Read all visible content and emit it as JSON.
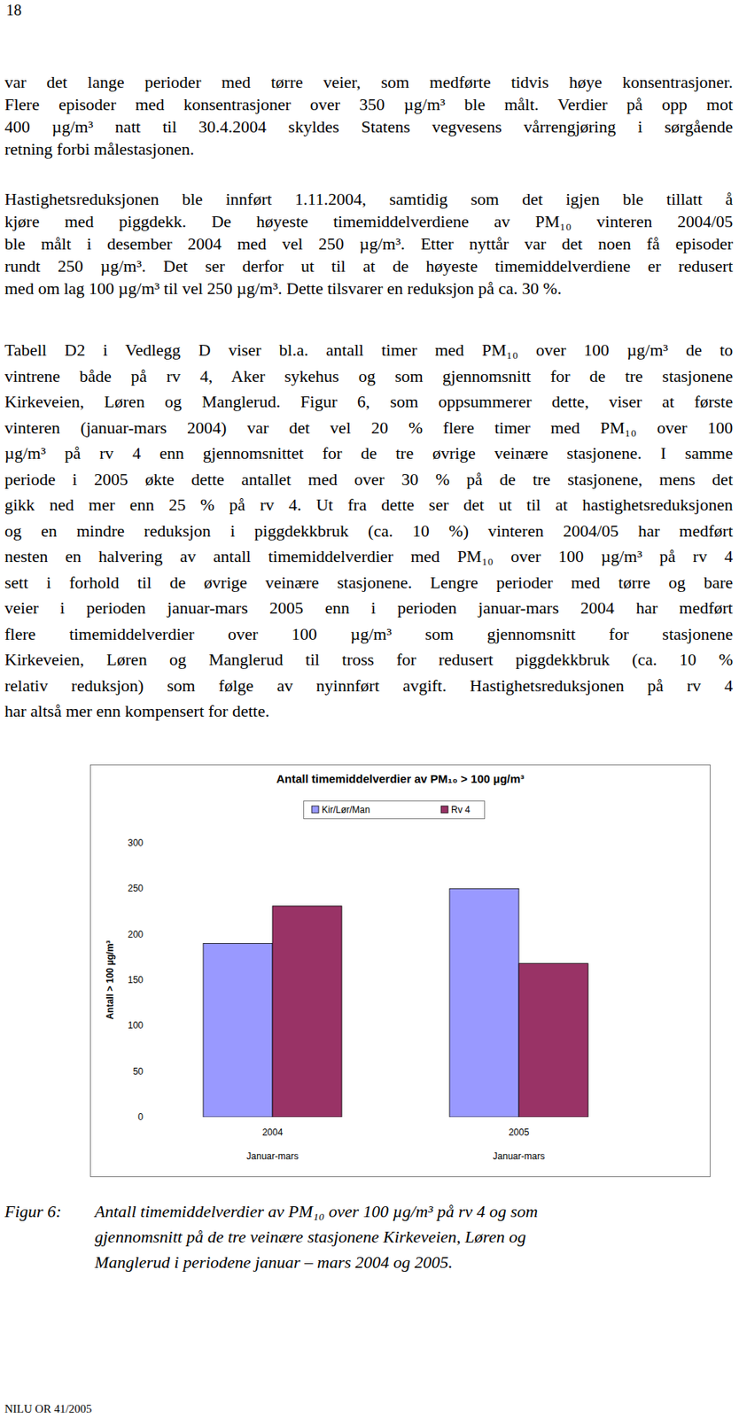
{
  "page": {
    "page_number": "18",
    "paragraphs": [
      [
        "var det lange perioder med tørre veier, som medførte tidvis høye konsentrasjoner.",
        "Flere episoder med konsentrasjoner over 350 µg/m³ ble målt. Verdier på opp mot",
        "400 µg/m³ natt til 30.4.2004 skyldes Statens vegvesens vårrengjøring i sørgående",
        "retning forbi målestasjonen."
      ],
      [
        "Hastighetsreduksjonen ble innført 1.11.2004, samtidig som det igjen ble tillatt å",
        "kjøre med piggdekk. De høyeste timemiddelverdiene av PM₁₀ vinteren 2004/05",
        "ble målt i desember 2004 med vel 250 µg/m³. Etter nyttår var det noen få episoder",
        "rundt 250 µg/m³. Det ser derfor ut til at de høyeste timemiddelverdiene er redusert",
        "med om lag 100 µg/m³ til vel 250 µg/m³. Dette tilsvarer en reduksjon på ca. 30 %."
      ],
      [
        "Tabell D2 i Vedlegg D viser bl.a. antall timer med PM₁₀ over 100 µg/m³ de to",
        "vintrene både på rv 4, Aker sykehus og som gjennomsnitt for de tre stasjonene",
        "Kirkeveien, Løren og Manglerud. Figur 6, som oppsummerer dette, viser at første",
        "vinteren (januar-mars 2004) var det vel 20 % flere timer med PM₁₀ over 100",
        "µg/m³ på rv 4 enn gjennomsnittet for de tre øvrige veinære stasjonene. I samme",
        "periode i 2005 økte dette antallet med over 30 % på de tre stasjonene, mens det",
        "gikk ned mer enn 25 % på rv 4. Ut fra dette ser det ut til at hastighetsreduksjonen",
        "og en mindre reduksjon i piggdekkbruk (ca. 10 %) vinteren 2004/05 har medført",
        "nesten en halvering av antall timemiddelverdier med PM₁₀ over 100 µg/m³ på rv 4",
        "sett i forhold til de øvrige veinære stasjonene. Lengre perioder med tørre og bare",
        "veier i perioden januar-mars 2005 enn i perioden januar-mars 2004 har medført",
        "flere timemiddelverdier over 100 µg/m³ som gjennomsnitt for stasjonene",
        "Kirkeveien, Løren og Manglerud til tross for redusert piggdekkbruk (ca. 10 %",
        "relativ reduksjon) som følge av nyinnført avgift. Hastighetsreduksjonen på rv 4",
        "har altså mer enn kompensert for dette."
      ]
    ],
    "caption": {
      "label": "Figur 6:",
      "lines": [
        "Antall timemiddelverdier av PM₁₀ over 100 µg/m³ på rv 4 og som",
        "gjennomsnitt på de tre veinære stasjonene Kirkeveien, Løren og",
        "Manglerud i periodene januar – mars 2004 og 2005."
      ]
    },
    "footer": "NILU OR 41/2005"
  },
  "chart_data": {
    "type": "bar",
    "title": "Antall timemiddelverdier av PM₁₀ > 100 µg/m³",
    "y_label": "Antall > 100 µg/m³",
    "categories": [
      "2004\nJanuar-mars",
      "2005\nJanuar-mars"
    ],
    "series": [
      {
        "name": "Kir/Lør/Man",
        "color": "#9999ff",
        "values": [
          190,
          250
        ]
      },
      {
        "name": "Rv 4",
        "color": "#993366",
        "values": [
          231,
          168
        ]
      }
    ],
    "ylim": [
      0,
      300
    ],
    "yticks": [
      0,
      50,
      100,
      150,
      200,
      250,
      300
    ],
    "grid": false,
    "legend": "top"
  }
}
